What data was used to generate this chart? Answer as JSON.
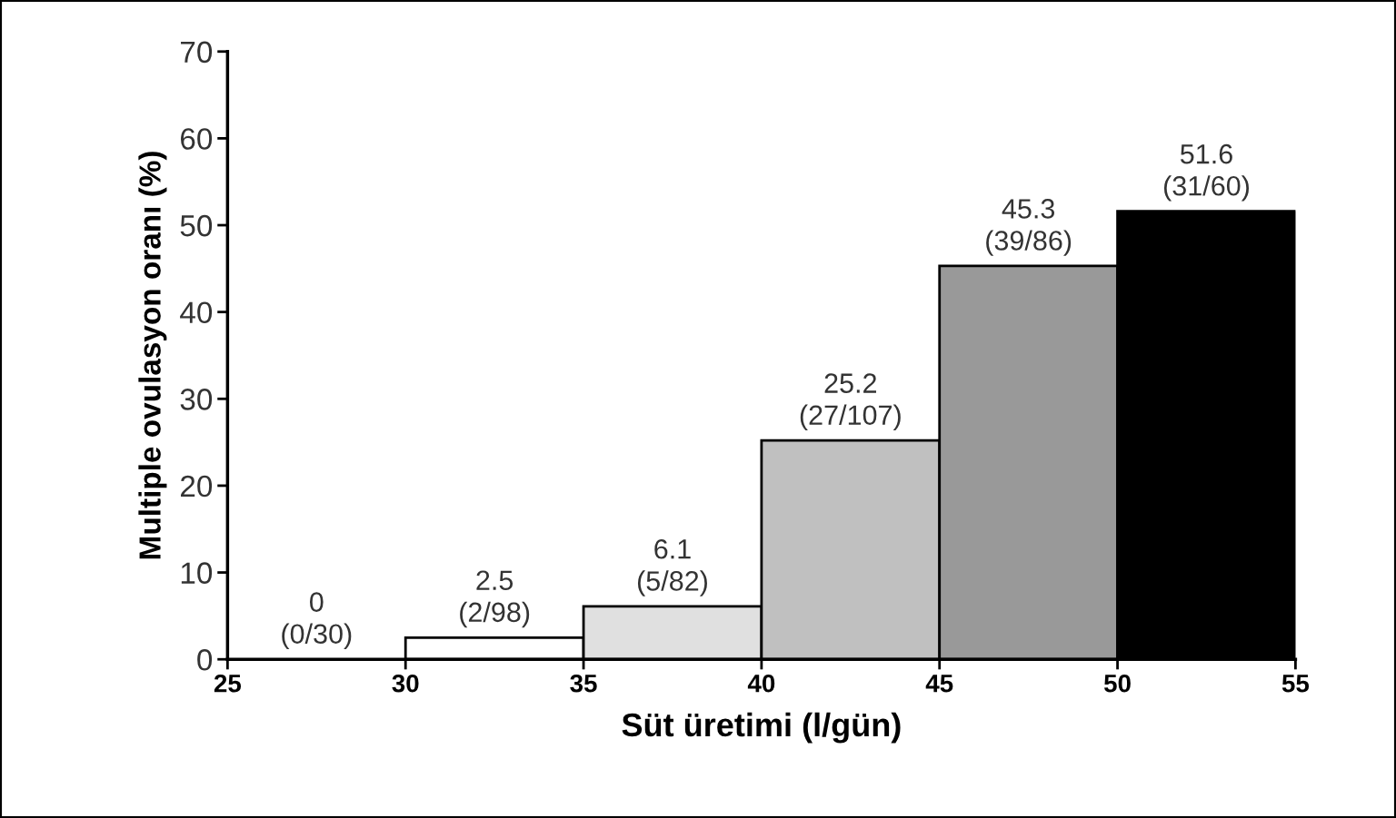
{
  "chart_data": {
    "type": "histogram",
    "xlabel": "Süt üretimi (l/gün)",
    "ylabel": "Multiple ovulasyon oranı (%)",
    "bins": [
      25,
      30,
      35,
      40,
      45,
      50,
      55
    ],
    "values": [
      0,
      2.5,
      6.1,
      25.2,
      45.3,
      51.6
    ],
    "colors": [
      "#ffffff",
      "#ffffff",
      "#e0e0e0",
      "#c0c0c0",
      "#999999",
      "#000000"
    ],
    "value_labels": [
      "0\n(0/30)",
      "2.5\n(2/98)",
      "6.1\n(5/82)",
      "25.2\n(27/107)",
      "45.3\n(39/86)",
      "51.6\n(31/60)"
    ],
    "xlim": [
      25,
      55
    ],
    "xticks": [
      25,
      30,
      35,
      40,
      45,
      50,
      55
    ],
    "ylim": [
      0,
      70
    ],
    "yticks": [
      0,
      10,
      20,
      30,
      40,
      50,
      60,
      70
    ],
    "grid": false
  }
}
